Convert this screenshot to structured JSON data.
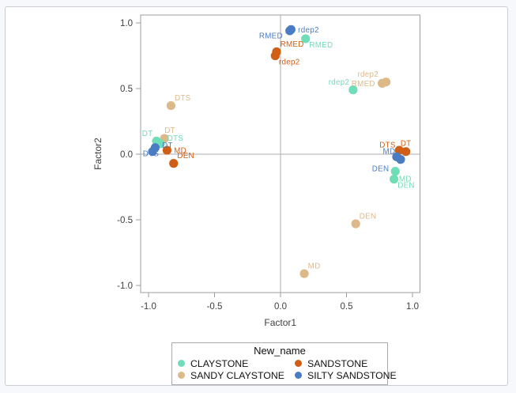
{
  "legend": {
    "title": "New_name",
    "items": [
      {
        "label": "CLAYSTONE"
      },
      {
        "label": "SANDY CLAYSTONE"
      },
      {
        "label": "SANDSTONE"
      },
      {
        "label": "SILTY SANDSTONE"
      }
    ]
  },
  "chart_data": {
    "type": "scatter",
    "title": "",
    "xlabel": "Factor1",
    "ylabel": "Factor2",
    "xlim": [
      -1.06,
      1.06
    ],
    "ylim": [
      -1.05,
      1.06
    ],
    "x_ticks": [
      -1.0,
      -0.5,
      0.0,
      0.5,
      1.0
    ],
    "x_tick_labels": [
      "-1.0",
      "-0.5",
      "0.0",
      "0.5",
      "1.0"
    ],
    "y_ticks": [
      -1.0,
      -0.5,
      0.0,
      0.5,
      1.0
    ],
    "y_tick_labels": [
      "-1.0",
      "-0.5",
      "0.0",
      "0.5",
      "1.0"
    ],
    "grid": false,
    "reference_lines": [
      {
        "axis": "x",
        "value": 0.0
      },
      {
        "axis": "y",
        "value": 0.0
      }
    ],
    "legend_title": "New_name",
    "legend_position": "bottom",
    "frame_color": "#9d9d9d",
    "reference_line_color": "#adadad",
    "draw_order": [
      1,
      0,
      2,
      3
    ],
    "series": [
      {
        "name": "CLAYSTONE",
        "color": "#6fddb5",
        "points": [
          {
            "label": "DT",
            "x": -0.94,
            "y": 0.1,
            "label_pos": "above-left"
          },
          {
            "label": "DTS",
            "x": -0.91,
            "y": 0.08,
            "label_pos": "above-right",
            "ldx": 4,
            "ldy": 3
          },
          {
            "label": "RMED",
            "x": 0.19,
            "y": 0.88,
            "label_pos": "below-right",
            "ldy": -4
          },
          {
            "label": "rdep2",
            "x": 0.55,
            "y": 0.49,
            "label_pos": "above-left"
          },
          {
            "label": "MD",
            "x": 0.87,
            "y": -0.13,
            "label_pos": "below-right",
            "ldy": -2
          },
          {
            "label": "DEN",
            "x": 0.86,
            "y": -0.19,
            "label_pos": "below-right",
            "ldy": -4
          }
        ]
      },
      {
        "name": "SANDY CLAYSTONE",
        "color": "#ddb98a",
        "points": [
          {
            "label": "DT",
            "x": -0.88,
            "y": 0.12,
            "label_pos": "above",
            "ldx": 7
          },
          {
            "label": "DTS",
            "x": -0.83,
            "y": 0.37,
            "label_pos": "above-right"
          },
          {
            "label": "RMED",
            "x": 0.77,
            "y": 0.54,
            "label_pos": "left"
          },
          {
            "label": "rdep2",
            "x": 0.8,
            "y": 0.55,
            "label_pos": "above-left",
            "ldx": -5
          },
          {
            "label": "MD",
            "x": 0.18,
            "y": -0.91,
            "label_pos": "above-right"
          },
          {
            "label": "DEN",
            "x": 0.57,
            "y": -0.53,
            "label_pos": "above-right"
          }
        ]
      },
      {
        "name": "SANDSTONE",
        "color": "#ce5f15",
        "points": [
          {
            "label": "DT",
            "x": 0.95,
            "y": 0.02,
            "label_pos": "above"
          },
          {
            "label": "DTS",
            "x": 0.9,
            "y": 0.03,
            "label_pos": "above-left",
            "ldy": 3
          },
          {
            "label": "RMED",
            "x": -0.03,
            "y": 0.78,
            "label_pos": "above-right"
          },
          {
            "label": "rdep2",
            "x": -0.04,
            "y": 0.75,
            "label_pos": "below-right",
            "ldy": -4
          },
          {
            "label": "MD",
            "x": -0.86,
            "y": 0.03,
            "label_pos": "right"
          },
          {
            "label": "DEN",
            "x": -0.81,
            "y": -0.07,
            "label_pos": "above-right"
          }
        ]
      },
      {
        "name": "SILTY SANDSTONE",
        "color": "#4a7cc4",
        "points": [
          {
            "label": "DT",
            "x": -0.95,
            "y": 0.05,
            "label_pos": "right",
            "ldy": -3
          },
          {
            "label": "DTS",
            "x": -0.97,
            "y": 0.02,
            "label_pos": "below",
            "ldx": -2,
            "ldy": -11
          },
          {
            "label": "RMED",
            "x": 0.07,
            "y": 0.94,
            "label_pos": "left",
            "ldy": 6
          },
          {
            "label": "rdep2",
            "x": 0.08,
            "y": 0.95,
            "label_pos": "right"
          },
          {
            "label": "MD",
            "x": 0.88,
            "y": -0.02,
            "label_pos": "above-left",
            "ldx": 3,
            "ldy": 3
          },
          {
            "label": "DEN",
            "x": 0.91,
            "y": -0.04,
            "label_pos": "below-left",
            "ldx": -10
          }
        ]
      }
    ]
  }
}
